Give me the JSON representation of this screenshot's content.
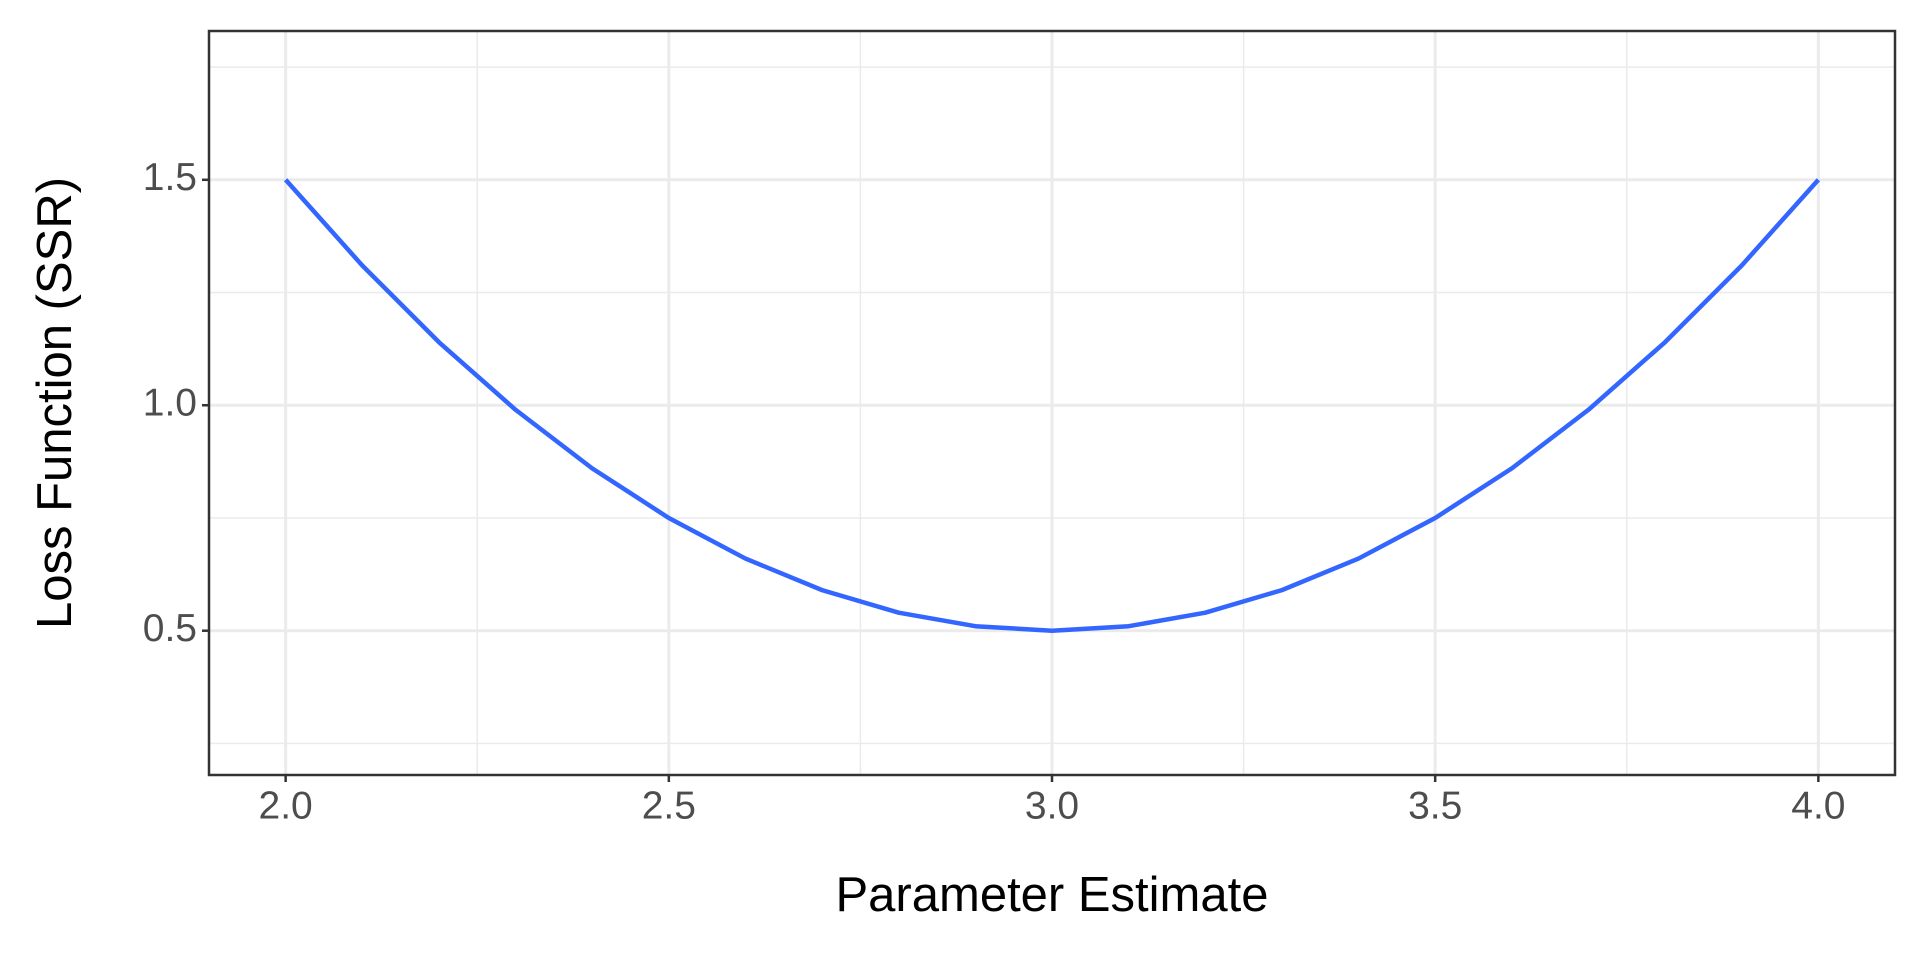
{
  "chart_data": {
    "type": "line",
    "x_label": "Parameter Estimate",
    "y_label": "Loss Function (SSR)",
    "x": [
      2.0,
      2.1,
      2.2,
      2.3,
      2.4,
      2.5,
      2.6,
      2.7,
      2.8,
      2.9,
      3.0,
      3.1,
      3.2,
      3.3,
      3.4,
      3.5,
      3.6,
      3.7,
      3.8,
      3.9,
      4.0
    ],
    "series": [
      {
        "color": "#3366ff",
        "values": [
          1.5,
          1.31,
          1.14,
          0.99,
          0.86,
          0.75,
          0.66,
          0.59,
          0.54,
          0.51,
          0.5,
          0.51,
          0.54,
          0.59,
          0.66,
          0.75,
          0.86,
          0.99,
          1.14,
          1.31,
          1.5
        ]
      }
    ],
    "xlim": [
      1.9,
      4.1
    ],
    "ylim": [
      0.18,
      1.83
    ],
    "xticks": [
      {
        "value": 2,
        "label": "2.0"
      },
      2.5,
      {
        "value": 3,
        "label": "3.0"
      },
      3.5,
      {
        "value": 4,
        "label": "4.0"
      }
    ],
    "yticks": [
      0.5,
      {
        "value": 1,
        "label": "1.0"
      },
      1.5
    ],
    "xminorticks": [
      2.25,
      2.75,
      3.25,
      3.75
    ],
    "yminorticks": [
      0.25,
      0.75,
      1.25,
      1.75
    ],
    "grid": true
  }
}
